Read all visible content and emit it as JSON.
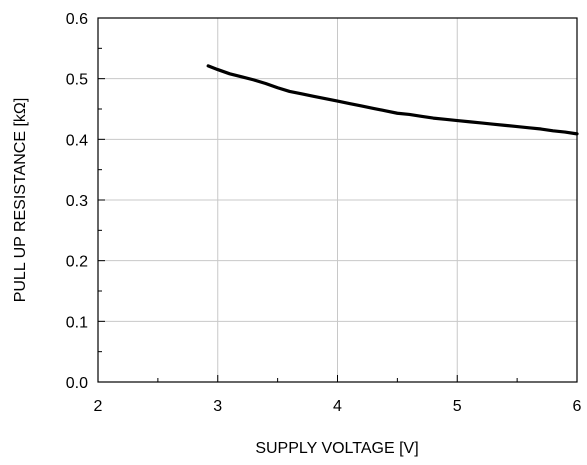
{
  "chart_data": {
    "type": "line",
    "title": "",
    "xlabel": "SUPPLY VOLTAGE [V]",
    "ylabel": "PULL UP RESISTANCE [kΩ]",
    "xlim": [
      2,
      6
    ],
    "ylim": [
      0.0,
      0.6
    ],
    "x_ticks": [
      2,
      3,
      4,
      5,
      6
    ],
    "x_tick_labels": [
      "2",
      "3",
      "4",
      "5",
      "6"
    ],
    "y_ticks": [
      0.0,
      0.1,
      0.2,
      0.3,
      0.4,
      0.5,
      0.6
    ],
    "y_tick_labels": [
      "0.0",
      "0.1",
      "0.2",
      "0.3",
      "0.4",
      "0.5",
      "0.6"
    ],
    "grid": true,
    "legend": "none",
    "series": [
      {
        "color": "#000000",
        "x": [
          2.92,
          3.0,
          3.1,
          3.2,
          3.3,
          3.4,
          3.5,
          3.6,
          3.7,
          3.8,
          3.9,
          4.0,
          4.1,
          4.2,
          4.3,
          4.4,
          4.5,
          4.6,
          4.7,
          4.8,
          4.9,
          5.0,
          5.1,
          5.2,
          5.3,
          5.4,
          5.5,
          5.6,
          5.7,
          5.8,
          5.9,
          6.0
        ],
        "y": [
          0.521,
          0.515,
          0.508,
          0.503,
          0.498,
          0.492,
          0.485,
          0.479,
          0.475,
          0.471,
          0.467,
          0.463,
          0.459,
          0.455,
          0.451,
          0.447,
          0.443,
          0.441,
          0.438,
          0.435,
          0.433,
          0.431,
          0.429,
          0.427,
          0.425,
          0.423,
          0.421,
          0.419,
          0.417,
          0.414,
          0.412,
          0.409
        ]
      }
    ]
  }
}
